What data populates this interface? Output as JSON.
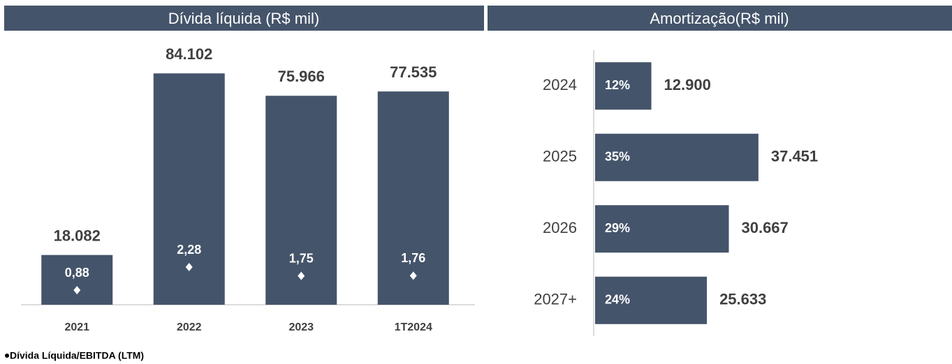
{
  "chart_data": [
    {
      "type": "bar",
      "title": "Dívida líquida (R$ mil)",
      "categories": [
        "2021",
        "2022",
        "2023",
        "1T2024"
      ],
      "values": [
        18082,
        84102,
        75966,
        77535
      ],
      "value_labels": [
        "18.082",
        "84.102",
        "75.966",
        "77.535"
      ],
      "color": "#44546a",
      "ylim": [
        0,
        90000
      ],
      "ratio": {
        "name": "Dívida Líquida/EBITDA (LTM)",
        "values": [
          0.88,
          2.28,
          1.75,
          1.76
        ],
        "value_labels": [
          "0,88",
          "2,28",
          "1,75",
          "1,76"
        ],
        "axis": "y2",
        "color": "#ffffff"
      },
      "y2lim": [
        0,
        15
      ]
    },
    {
      "type": "hbar",
      "title": "Amortização(R$ mil)",
      "categories": [
        "2024",
        "2025",
        "2026",
        "2027+"
      ],
      "values": [
        12900,
        37451,
        30667,
        25633
      ],
      "value_labels": [
        "12.900",
        "37.451",
        "30.667",
        "25.633"
      ],
      "shares": [
        12,
        35,
        29,
        24
      ],
      "share_labels": [
        "12%",
        "35%",
        "29%",
        "24%"
      ],
      "color": "#44546a",
      "xlim": [
        0,
        45000
      ]
    }
  ]
}
